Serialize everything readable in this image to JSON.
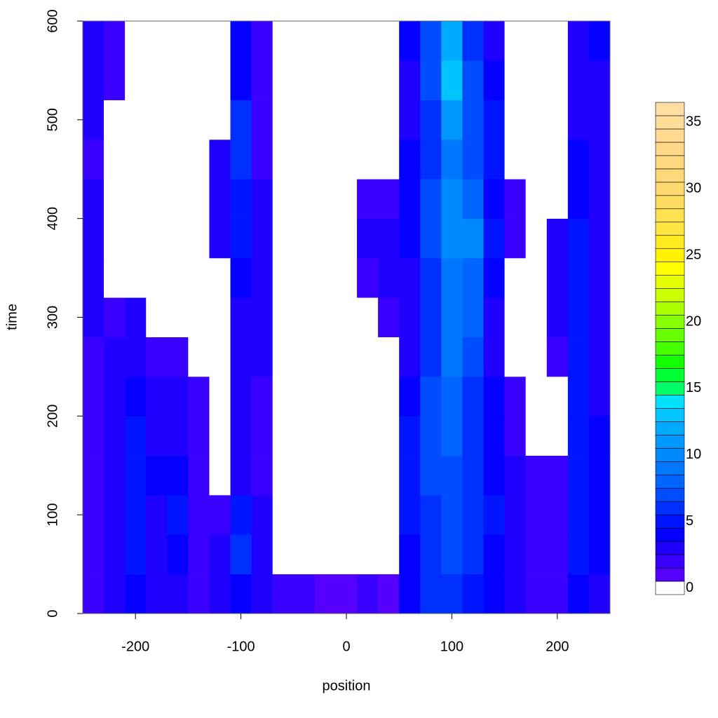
{
  "chart_data": {
    "type": "heatmap",
    "x_label": "position",
    "y_label": "time",
    "x": [
      -240,
      -220,
      -200,
      -180,
      -160,
      -140,
      -120,
      -100,
      -80,
      -60,
      -40,
      -20,
      0,
      20,
      40,
      60,
      80,
      100,
      120,
      140,
      160,
      180,
      200,
      220,
      240
    ],
    "y": [
      20,
      60,
      100,
      140,
      180,
      220,
      260,
      300,
      340,
      380,
      420,
      460,
      500,
      540,
      580
    ],
    "z": [
      [
        2,
        3,
        4,
        3,
        3,
        2,
        3,
        4,
        3,
        2,
        2,
        1,
        1,
        2,
        1,
        4,
        6,
        6,
        5,
        4,
        3,
        2,
        2,
        4,
        3
      ],
      [
        2,
        3,
        5,
        3,
        4,
        2,
        3,
        6,
        3,
        0,
        0,
        0,
        0,
        0,
        0,
        4,
        6,
        7,
        6,
        4,
        3,
        2,
        2,
        5,
        4
      ],
      [
        2,
        3,
        5,
        3,
        5,
        2,
        2,
        5,
        3,
        0,
        0,
        0,
        0,
        0,
        0,
        5,
        6,
        7,
        6,
        5,
        3,
        2,
        2,
        5,
        4
      ],
      [
        2,
        3,
        5,
        4,
        4,
        2,
        0,
        3,
        2,
        0,
        0,
        0,
        0,
        0,
        0,
        5,
        7,
        7,
        6,
        4,
        3,
        2,
        2,
        5,
        4
      ],
      [
        2,
        3,
        5,
        3,
        3,
        2,
        0,
        3,
        2,
        0,
        0,
        0,
        0,
        0,
        0,
        5,
        7,
        8,
        6,
        4,
        2,
        0,
        0,
        5,
        4
      ],
      [
        2,
        3,
        4,
        3,
        3,
        2,
        0,
        3,
        2,
        0,
        0,
        0,
        0,
        0,
        0,
        4,
        7,
        8,
        6,
        4,
        2,
        0,
        0,
        5,
        3
      ],
      [
        2,
        3,
        3,
        2,
        2,
        0,
        0,
        3,
        3,
        0,
        0,
        0,
        0,
        0,
        0,
        3,
        6,
        9,
        7,
        3,
        0,
        0,
        2,
        5,
        3
      ],
      [
        3,
        2,
        3,
        0,
        0,
        0,
        0,
        3,
        3,
        0,
        0,
        0,
        0,
        0,
        2,
        3,
        6,
        9,
        8,
        3,
        0,
        0,
        3,
        5,
        3
      ],
      [
        3,
        0,
        0,
        0,
        0,
        0,
        0,
        4,
        3,
        0,
        0,
        0,
        0,
        2,
        3,
        3,
        6,
        9,
        8,
        4,
        0,
        0,
        3,
        5,
        3
      ],
      [
        3,
        0,
        0,
        0,
        0,
        0,
        3,
        5,
        3,
        0,
        0,
        0,
        0,
        3,
        3,
        4,
        7,
        10,
        10,
        5,
        2,
        0,
        3,
        5,
        3
      ],
      [
        3,
        0,
        0,
        0,
        0,
        0,
        3,
        5,
        3,
        0,
        0,
        0,
        0,
        2,
        2,
        4,
        7,
        10,
        8,
        4,
        2,
        0,
        0,
        4,
        3
      ],
      [
        2,
        0,
        0,
        0,
        0,
        0,
        3,
        6,
        2,
        0,
        0,
        0,
        0,
        0,
        0,
        4,
        6,
        9,
        7,
        5,
        0,
        0,
        0,
        4,
        3
      ],
      [
        3,
        0,
        0,
        0,
        0,
        0,
        0,
        6,
        2,
        0,
        0,
        0,
        0,
        0,
        0,
        3,
        6,
        11,
        7,
        5,
        0,
        0,
        0,
        3,
        3
      ],
      [
        3,
        2,
        0,
        0,
        0,
        0,
        0,
        4,
        2,
        0,
        0,
        0,
        0,
        0,
        0,
        3,
        7,
        13,
        7,
        4,
        0,
        0,
        0,
        3,
        3
      ],
      [
        3,
        2,
        0,
        0,
        0,
        0,
        0,
        4,
        2,
        0,
        0,
        0,
        0,
        0,
        0,
        4,
        7,
        12,
        6,
        3,
        0,
        0,
        0,
        3,
        4
      ]
    ],
    "xlim": [
      -250,
      250
    ],
    "ylim": [
      0,
      600
    ],
    "xticks": [
      -200,
      -100,
      0,
      100,
      200
    ],
    "yticks": [
      0,
      100,
      200,
      300,
      400,
      500,
      600
    ],
    "zlim": [
      -0.5,
      36.5
    ],
    "zticks": [
      0,
      5,
      10,
      15,
      20,
      25,
      30,
      35
    ],
    "colors": [
      "#ffffff",
      "#5500ff",
      "#3a00ff",
      "#1f00ff",
      "#0400ff",
      "#0014ff",
      "#0030ff",
      "#004cff",
      "#0066ff",
      "#0077ff",
      "#0088ff",
      "#0099ff",
      "#00aaff",
      "#00c4ff",
      "#00e0ff",
      "#00ff66",
      "#00ff33",
      "#11ff00",
      "#44ff00",
      "#66ff00",
      "#88ff00",
      "#aaff00",
      "#ccff00",
      "#e6ff00",
      "#ffff00",
      "#fff200",
      "#ffea20",
      "#ffe640",
      "#ffe050",
      "#ffdb60",
      "#ffd870",
      "#ffd878",
      "#ffd880",
      "#ffd888",
      "#ffda90",
      "#ffdc98",
      "#ffdea4"
    ]
  }
}
